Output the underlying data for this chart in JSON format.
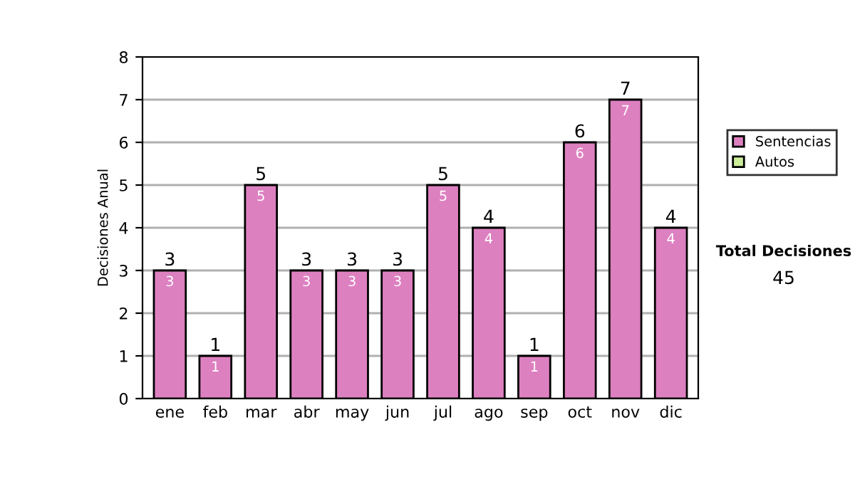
{
  "chart_data": {
    "type": "bar",
    "ylabel": "Decisiones Anual",
    "stacked": true,
    "categories": [
      "ene",
      "feb",
      "mar",
      "abr",
      "may",
      "jun",
      "jul",
      "ago",
      "sep",
      "oct",
      "nov",
      "dic"
    ],
    "series": [
      {
        "name": "Sentencias",
        "color": "#dd80c0",
        "values": [
          3,
          1,
          5,
          3,
          3,
          3,
          5,
          4,
          1,
          6,
          7,
          4
        ],
        "value_labels": [
          "3",
          "1",
          "5",
          "3",
          "3",
          "3",
          "5",
          "4",
          "1",
          "6",
          "7",
          "4"
        ]
      },
      {
        "name": "Autos",
        "color": "#ccee99",
        "values": [
          0,
          0,
          0,
          0,
          0,
          0,
          0,
          0,
          0,
          0,
          0,
          0
        ]
      }
    ],
    "totals": [
      "3",
      "1",
      "5",
      "3",
      "3",
      "3",
      "5",
      "4",
      "1",
      "6",
      "7",
      "4"
    ],
    "ylim": [
      0,
      8
    ],
    "yticks": [
      0,
      1,
      2,
      3,
      4,
      5,
      6,
      7,
      8
    ],
    "grid": "y",
    "legend": "right",
    "annotations": [
      "Total Decisiones",
      "45"
    ]
  }
}
